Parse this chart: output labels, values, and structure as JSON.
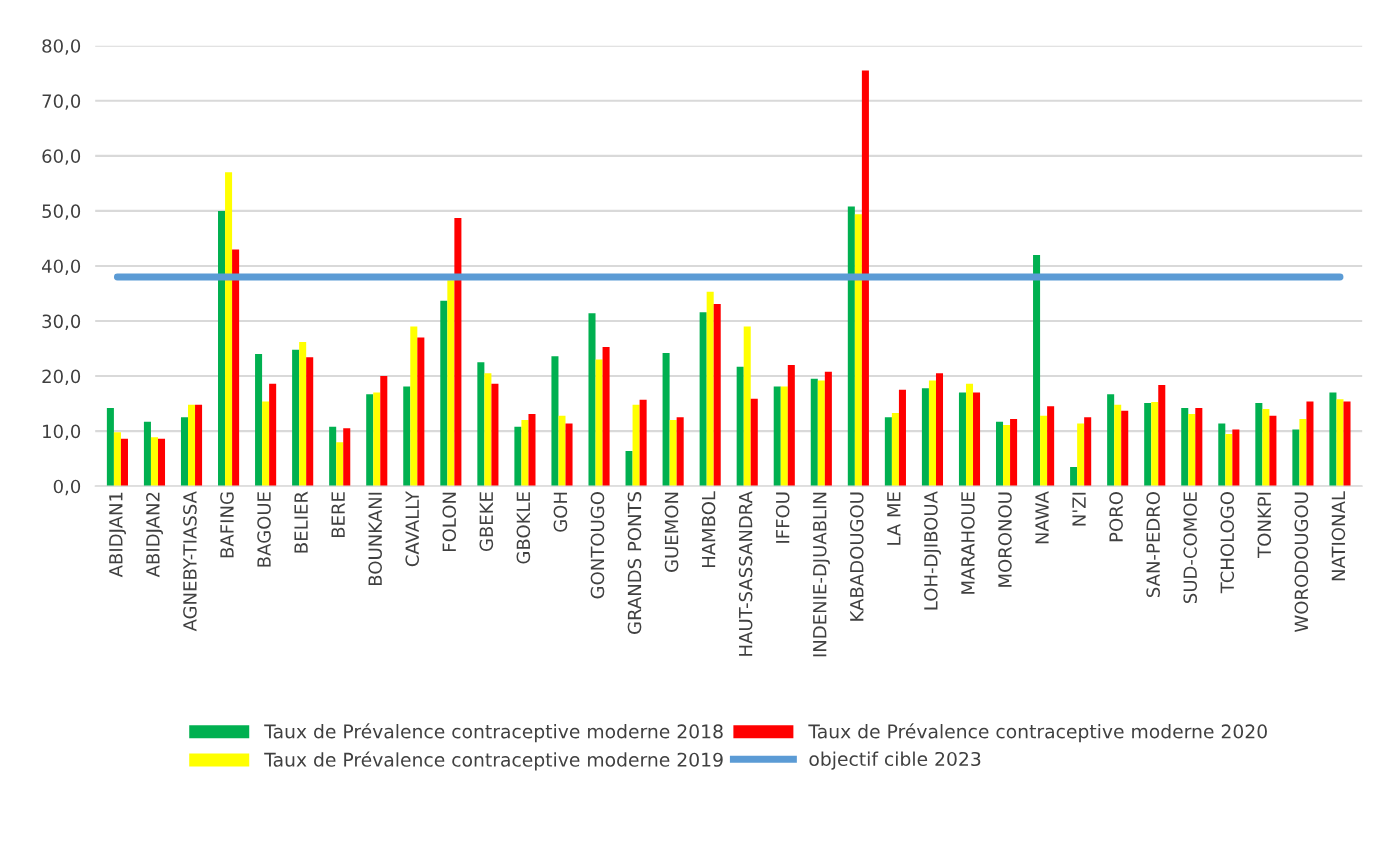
{
  "chart_data": {
    "type": "bar",
    "categories": [
      "ABIDJAN1",
      "ABIDJAN2",
      "AGNEBY-TIASSA",
      "BAFING",
      "BAGOUE",
      "BELIER",
      "BERE",
      "BOUNKANI",
      "CAVALLY",
      "FOLON",
      "GBEKE",
      "GBOKLE",
      "GOH",
      "GONTOUGO",
      "GRANDS PONTS",
      "GUEMON",
      "HAMBOL",
      "HAUT-SASSANDRA",
      "IFFOU",
      "INDENIE-DJUABLIN",
      "KABADOUGOU",
      "LA ME",
      "LOH-DJIBOUA",
      "MARAHOUE",
      "MORONOU",
      "NAWA",
      "N'ZI",
      "PORO",
      "SAN-PEDRO",
      "SUD-COMOE",
      "TCHOLOGO",
      "TONKPI",
      "WORODOUGOU",
      "NATIONAL"
    ],
    "series": [
      {
        "name": "Taux de Prévalence contraceptive moderne 2018",
        "color": "#00b050",
        "values": [
          14.2,
          11.7,
          12.5,
          50,
          24,
          24.8,
          10.8,
          16.7,
          18.1,
          33.7,
          22.5,
          10.8,
          23.6,
          31.4,
          6.4,
          24.2,
          31.6,
          21.7,
          18.1,
          19.5,
          50.8,
          12.5,
          17.8,
          17.0,
          11.7,
          42.0,
          3.5,
          16.7,
          15.1,
          14.2,
          11.4,
          15.1,
          10.3,
          17.0
        ]
      },
      {
        "name": "Taux de Prévalence contraceptive moderne 2019",
        "color": "#ffff00",
        "values": [
          9.8,
          8.9,
          14.8,
          57,
          15.4,
          26.2,
          8.0,
          17,
          29,
          37.4,
          20.5,
          12,
          12.8,
          23,
          14.8,
          12,
          35.3,
          29,
          18.1,
          19.2,
          49.4,
          13.3,
          19.2,
          18.6,
          11.1,
          12.8,
          11.4,
          14.8,
          15.3,
          13.1,
          9.5,
          14.0,
          12.2,
          15.8
        ]
      },
      {
        "name": "Taux de Prévalence contraceptive moderne 2020",
        "color": "#ff0000",
        "values": [
          8.6,
          8.6,
          14.8,
          43,
          18.6,
          23.4,
          10.5,
          20,
          27,
          48.7,
          18.6,
          13.1,
          11.4,
          25.3,
          15.7,
          12.5,
          33.1,
          15.9,
          22,
          20.8,
          75.5,
          17.5,
          20.5,
          17.0,
          12.2,
          14.5,
          12.5,
          13.7,
          18.4,
          14.2,
          10.3,
          12.8,
          15.4,
          15.4
        ]
      },
      {
        "name": "objectif cible 2023",
        "type": "line",
        "color": "#5b9bd5",
        "values": [
          38,
          38,
          38,
          38,
          38,
          38,
          38,
          38,
          38,
          38,
          38,
          38,
          38,
          38,
          38,
          38,
          38,
          38,
          38,
          38,
          38,
          38,
          38,
          38,
          38,
          38,
          38,
          38,
          38,
          38,
          38,
          38,
          38,
          38
        ]
      }
    ],
    "ylim": [
      0,
      80
    ],
    "yticks": [
      {
        "value": 0,
        "label": "0,0"
      },
      {
        "value": 10,
        "label": "10,0"
      },
      {
        "value": 20,
        "label": "20,0"
      },
      {
        "value": 30,
        "label": "30,0"
      },
      {
        "value": 40,
        "label": "40,0"
      },
      {
        "value": 50,
        "label": "50,0"
      },
      {
        "value": 60,
        "label": "60,0"
      },
      {
        "value": 70,
        "label": "70,0"
      },
      {
        "value": 80,
        "label": "80,0"
      }
    ],
    "grid": "y",
    "legend": "bottom"
  }
}
